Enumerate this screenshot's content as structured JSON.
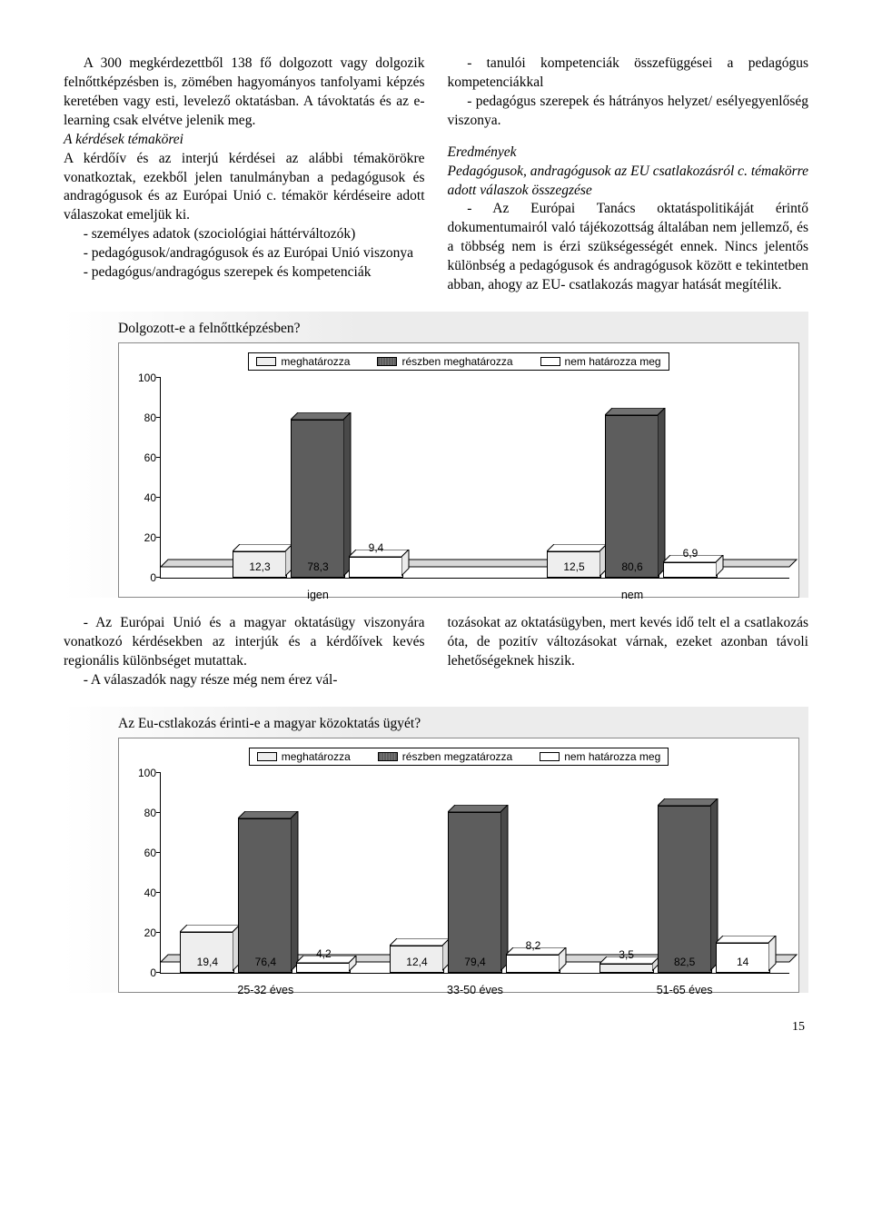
{
  "text": {
    "p1": "A 300 megkérdezettből 138 fő dolgozott vagy dolgozik felnőttképzésben is, zömében hagyományos tanfolyami képzés keretében vagy esti, levelező oktatásban. A távoktatás és az e-learning csak elvétve jelenik meg.",
    "h1": "A kérdések témakörei",
    "p2": "A kérdőív és az interjú kérdései az alábbi témakörökre vonatkoztak, ezekből jelen tanulmányban a pedagógusok és andragógusok és az Európai Unió c. témakör kérdéseire adott válaszokat emeljük ki.",
    "li1": "- személyes adatok (szociológiai háttérváltozók)",
    "li2": "- pedagógusok/andragógusok és az Európai Unió viszonya",
    "li3": "- pedagógus/andragógus szerepek és kompetenciák",
    "li4": "- tanulói kompetenciák összefüggései a pedagógus kompetenciákkal",
    "li5": "- pedagógus szerepek és hátrányos helyzet/ esélyegyenlőség viszonya.",
    "h2": "Eredmények",
    "h3": "Pedagógusok, andragógusok az EU csatlakozásról c. témakörre adott válaszok összegzése",
    "p3": "- Az Európai Tanács oktatáspolitikáját érintő dokumentumairól való tájékozottság általában nem jellemző, és a többség nem is érzi szükségességét ennek. Nincs jelentős különbség a pedagógusok és andragógusok között e tekintetben abban, ahogy az EU- csatlakozás magyar hatását megítélik.",
    "p4": "- Az Európai Unió és a magyar oktatásügy viszonyára vonatkozó kérdésekben az interjúk és a kérdőívek kevés regionális különbséget mutattak.",
    "p5": "- A válaszadók nagy része még nem érez vál-",
    "p6": "tozásokat az oktatásügyben, mert kevés idő telt el a csatlakozás óta, de pozitív változásokat várnak, ezeket azonban távoli lehetőségeknek hiszik."
  },
  "legend_labels": {
    "a": "meghatározza",
    "b": "részben meghatározza",
    "c": "nem határozza meg",
    "b2": "részben megzatározza"
  },
  "colors": {
    "light": "#eeeeee",
    "dark": "#5d5d5d",
    "white": "#ffffff",
    "border": "#000000"
  },
  "chart1": {
    "title": "Dolgozott-e a felnőttképzésben?",
    "ymax": 100,
    "ytick_step": 20,
    "categories": [
      "igen",
      "nem"
    ],
    "series": [
      {
        "name": "meghatározza",
        "color": "#eeeeee"
      },
      {
        "name": "részben meghatározza",
        "color": "#5d5d5d"
      },
      {
        "name": "nem határozza meg",
        "color": "#ffffff"
      }
    ],
    "data": [
      {
        "cat": "igen",
        "values": [
          12.3,
          78.3,
          9.4
        ],
        "labels": [
          "12,3",
          "78,3",
          "9,4"
        ]
      },
      {
        "cat": "nem",
        "values": [
          12.5,
          80.6,
          6.9
        ],
        "labels": [
          "12,5",
          "80,6",
          "6,9"
        ]
      }
    ]
  },
  "chart2": {
    "title": "Az Eu-cstlakozás érinti-e a magyar közoktatás ügyét?",
    "ymax": 100,
    "ytick_step": 20,
    "categories": [
      "25-32 éves",
      "33-50 éves",
      "51-65 éves"
    ],
    "series": [
      {
        "name": "meghatározza",
        "color": "#eeeeee"
      },
      {
        "name": "részben megzatározza",
        "color": "#5d5d5d"
      },
      {
        "name": "nem határozza meg",
        "color": "#ffffff"
      }
    ],
    "data": [
      {
        "cat": "25-32 éves",
        "values": [
          19.4,
          76.4,
          4.2
        ],
        "labels": [
          "19,4",
          "76,4",
          "4,2"
        ]
      },
      {
        "cat": "33-50 éves",
        "values": [
          12.4,
          79.4,
          8.2
        ],
        "labels": [
          "12,4",
          "79,4",
          "8,2"
        ]
      },
      {
        "cat": "51-65 éves",
        "values": [
          3.5,
          82.5,
          14
        ],
        "labels": [
          "3,5",
          "82,5",
          "14"
        ]
      }
    ]
  },
  "page_number": "15"
}
